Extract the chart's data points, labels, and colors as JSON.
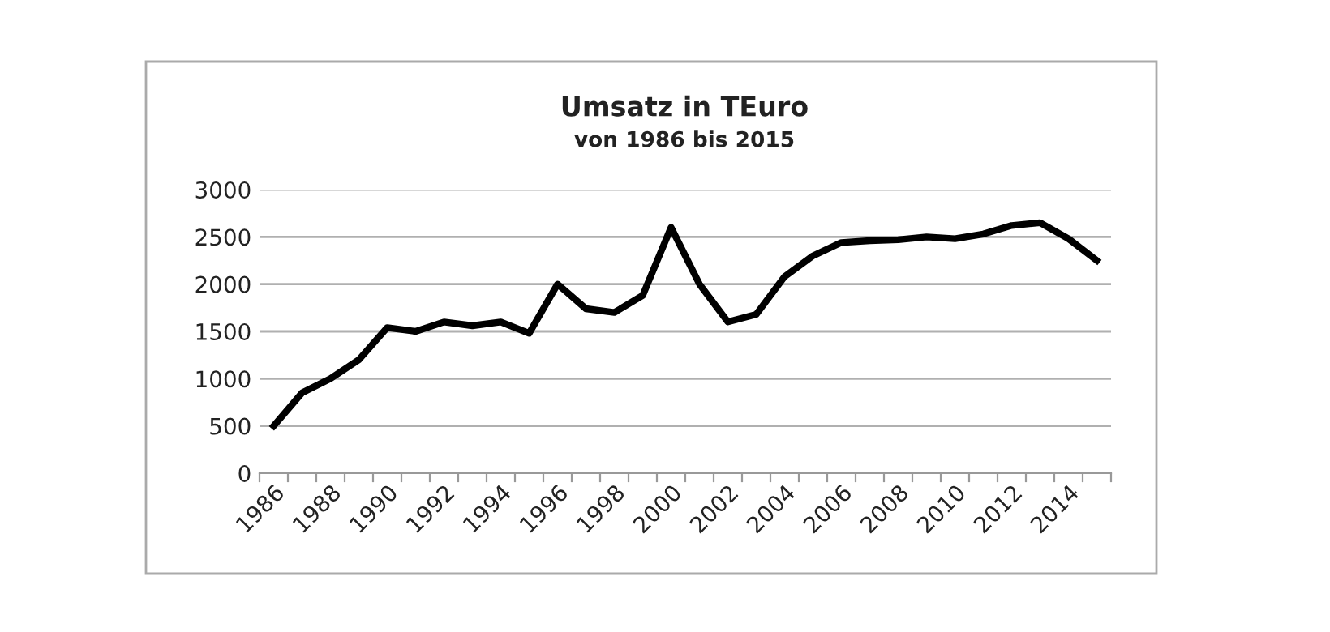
{
  "chart_data": {
    "type": "line",
    "title": "Umsatz in TEuro",
    "subtitle": "von 1986 bis 2015",
    "categories": [
      "1986",
      null,
      "1988",
      null,
      "1990",
      null,
      "1992",
      null,
      "1994",
      null,
      "1996",
      null,
      "1998",
      null,
      "2000",
      null,
      "2002",
      null,
      "2004",
      null,
      "2006",
      null,
      "2008",
      null,
      "2010",
      null,
      "2012",
      null,
      "2014",
      null
    ],
    "series": [
      {
        "color": "#000000",
        "values": [
          500,
          850,
          1000,
          1200,
          1540,
          1500,
          1600,
          1560,
          1600,
          1480,
          2000,
          1740,
          1700,
          1880,
          2600,
          2000,
          1600,
          1680,
          2080,
          2300,
          2440,
          2460,
          2470,
          2500,
          2480,
          2530,
          2620,
          2650,
          2480,
          2250
        ]
      }
    ],
    "ylim": [
      0,
      3000
    ],
    "yticks": [
      0,
      500,
      1000,
      1500,
      2000,
      2500,
      3000
    ],
    "grid": "y",
    "legend": false,
    "marker": "none",
    "line_style": "solid"
  }
}
